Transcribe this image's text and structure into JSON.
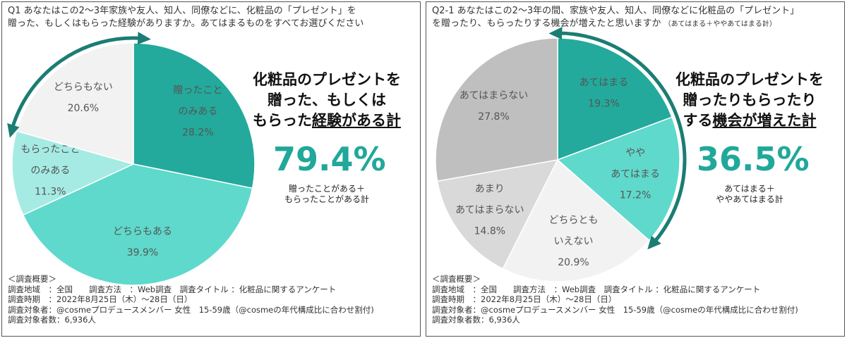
{
  "colors": {
    "teal_dark": "#23aa9c",
    "teal_light": "#5fd9cc",
    "teal_pale": "#a5ebe4",
    "gray_light": "#f2f2f2",
    "gray_mid": "#d9d9d9",
    "gray_dark": "#bfbfbf",
    "arrow": "#1b7d73",
    "accent": "#20a89a"
  },
  "left": {
    "question_line1": "Q1 あなたはこの2〜3年家族や友人、知人、同僚などに、化粧品の「プレゼント」を",
    "question_line2": "贈った、もしくはもらった経験がありますか。あてはまるものをすべてお選びください",
    "headline_line1": "化粧品のプレゼントを",
    "headline_line2": "贈った、もしくは",
    "headline_line3a": "もらった",
    "headline_line3b": "経験がある計",
    "big_value": "79.4%",
    "caption_line1": "贈ったことがある＋",
    "caption_line2": "もらったことがある計"
  },
  "right": {
    "question_line1": "Q2-1 あなたはこの2〜3年の間、家族や友人、知人、同僚などに化粧品の「プレゼント」",
    "question_line2": "を贈ったり、もらったりする機会が増えたと思いますか",
    "question_note": "（あてはまる＋ややあてはまる計）",
    "headline_line1": "化粧品のプレゼントを",
    "headline_line2": "贈ったりもらったり",
    "headline_line3a": "する",
    "headline_line3b": "機会が増えた計",
    "big_value": "36.5%",
    "caption_line1": "あてはまる＋",
    "caption_line2": "ややあてはまる計"
  },
  "survey": {
    "title": "＜調査概要＞",
    "line1": "調査地域　：全国　　調査方法　：Web調査　調査タイトル ：化粧品に関するアンケート",
    "line2": "調査時期　：2022年8月25日（木）〜28日（日）",
    "line3": "調査対象者：@cosmeプロデュースメンバー 女性　15-59歳（@cosmeの年代構成比に合わせ割付)",
    "line4": "調査対象者数：6,936人"
  },
  "chart_data": [
    {
      "type": "pie",
      "slices": [
        {
          "label": "贈ったこと|のみある",
          "value": 28.2,
          "value_label": "28.2%",
          "color": "#23aa9c"
        },
        {
          "label": "どちらもある",
          "value": 39.9,
          "value_label": "39.9%",
          "color": "#5fd9cc"
        },
        {
          "label": "もらったこと|のみある",
          "value": 11.3,
          "value_label": "11.3%",
          "color": "#a5ebe4"
        },
        {
          "label": "どちらもない",
          "value": 20.6,
          "value_label": "20.6%",
          "color": "#f2f2f2"
        }
      ],
      "highlight_total": 79.4
    },
    {
      "type": "pie",
      "slices": [
        {
          "label": "あてはまる",
          "value": 19.3,
          "value_label": "19.3%",
          "color": "#23aa9c"
        },
        {
          "label": "やや|あてはまる",
          "value": 17.2,
          "value_label": "17.2%",
          "color": "#5fd9cc"
        },
        {
          "label": "どちらとも|いえない",
          "value": 20.9,
          "value_label": "20.9%",
          "color": "#f2f2f2"
        },
        {
          "label": "あまり|あてはまらない",
          "value": 14.8,
          "value_label": "14.8%",
          "color": "#d9d9d9"
        },
        {
          "label": "あてはまらない",
          "value": 27.8,
          "value_label": "27.8%",
          "color": "#bfbfbf"
        }
      ],
      "highlight_total": 36.5
    }
  ]
}
